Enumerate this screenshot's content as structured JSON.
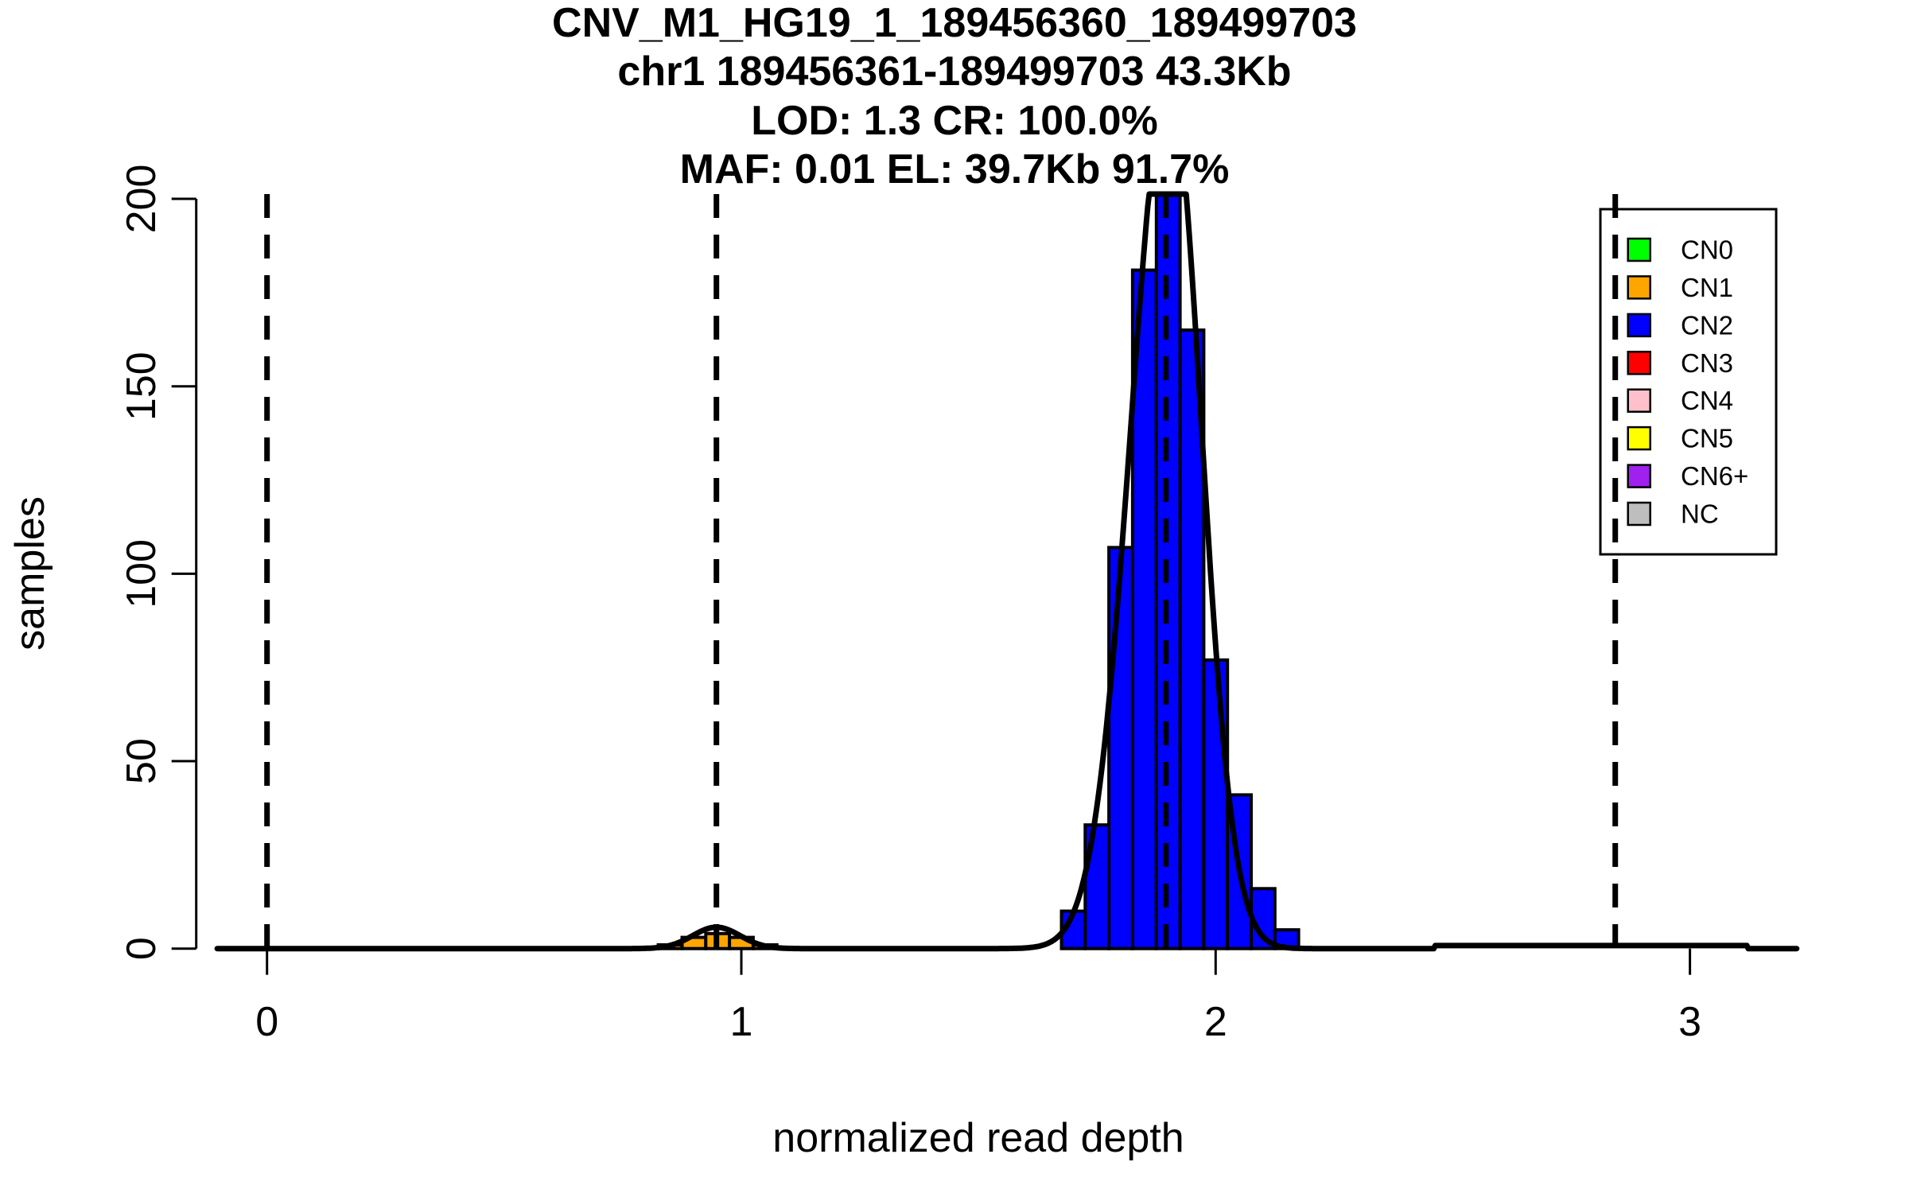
{
  "chart_data": {
    "type": "histogram",
    "title_lines": [
      "CNV_M1_HG19_1_189456360_189499703",
      "chr1 189456361-189499703 43.3Kb",
      "LOD: 1.3 CR: 100.0%",
      "MAF: 0.01 EL: 39.7Kb 91.7%"
    ],
    "region": {
      "cnv_id": "CNV_M1_HG19_1_189456360_189499703",
      "chrom": "chr1",
      "start": 189456361,
      "end": 189499703,
      "size": "43.3Kb"
    },
    "metrics": {
      "lod": 1.3,
      "call_rate": "100.0%",
      "maf": 0.01,
      "effective_length": "39.7Kb",
      "effective_length_pct": "91.7%"
    },
    "xlabel": "normalized read depth",
    "ylabel": "samples",
    "x_ticks": [
      0,
      1,
      2,
      3
    ],
    "y_ticks": [
      0,
      50,
      100,
      150,
      200
    ],
    "xlim": [
      -0.105,
      3.227
    ],
    "ylim": [
      0,
      201
    ],
    "grid": false,
    "series": [
      {
        "name": "CN1-cluster",
        "color": "#FFA500",
        "bin_start": 0.825,
        "bin_width": 0.05,
        "counts": [
          1,
          3,
          4,
          3,
          1
        ]
      },
      {
        "name": "CN2-cluster",
        "color": "#0000FF",
        "bin_start": 1.675,
        "bin_width": 0.05,
        "counts": [
          10,
          33,
          107,
          181,
          201,
          165,
          77,
          41,
          16,
          5
        ]
      }
    ],
    "density_curve": {
      "color": "#000000",
      "domain": [
        -0.105,
        3.227
      ],
      "components": [
        {
          "mu": 0.9475,
          "sigma_left": 0.05,
          "sigma_right": 0.05,
          "amp": 5.7
        },
        {
          "mu": 1.902,
          "sigma_left": 0.08,
          "sigma_right": 0.0675,
          "amp": 232
        }
      ],
      "plateau": {
        "from": 2.462,
        "to": 3.122,
        "height": 0.8
      }
    },
    "dashed_lines_x": [
      0,
      0.9475,
      1.895,
      2.8425
    ],
    "legend": {
      "position": "top-right",
      "items": [
        {
          "label": "CN0",
          "color": "#00FF00"
        },
        {
          "label": "CN1",
          "color": "#FFA500"
        },
        {
          "label": "CN2",
          "color": "#0000FF"
        },
        {
          "label": "CN3",
          "color": "#FF0000"
        },
        {
          "label": "CN4",
          "color": "#FFC0CB"
        },
        {
          "label": "CN5",
          "color": "#FFFF00"
        },
        {
          "label": "CN6+",
          "color": "#A020F0"
        },
        {
          "label": "NC",
          "color": "#BEBEBE"
        }
      ]
    },
    "colors": {
      "background": "#FFFFFF",
      "axis": "#000000",
      "curve": "#000000"
    }
  }
}
